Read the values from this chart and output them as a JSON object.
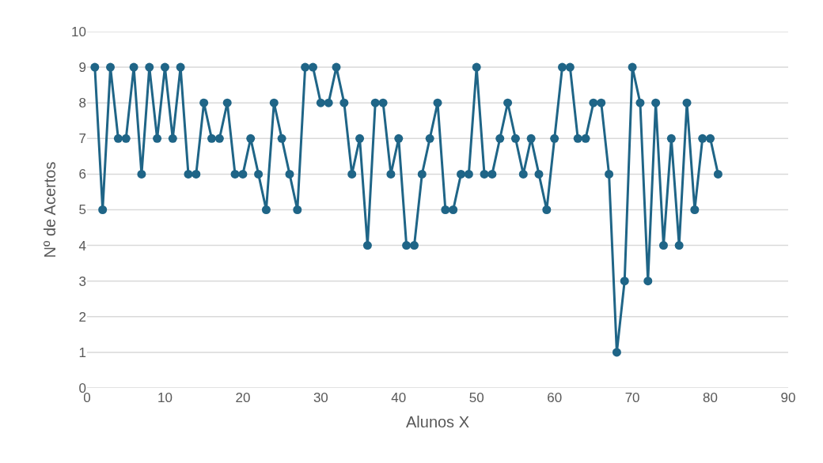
{
  "chart_data": {
    "type": "line",
    "xlabel": "Alunos X",
    "ylabel": "Nº de Acertos",
    "x": [
      1,
      2,
      3,
      4,
      5,
      6,
      7,
      8,
      9,
      10,
      11,
      12,
      13,
      14,
      15,
      16,
      17,
      18,
      19,
      20,
      21,
      22,
      23,
      24,
      25,
      26,
      27,
      28,
      29,
      30,
      31,
      32,
      33,
      34,
      35,
      36,
      37,
      38,
      39,
      40,
      41,
      42,
      43,
      44,
      45,
      46,
      47,
      48,
      49,
      50,
      51,
      52,
      53,
      54,
      55,
      56,
      57,
      58,
      59,
      60,
      61,
      62,
      63,
      64,
      65,
      66,
      67,
      68,
      69,
      70,
      71,
      72,
      73,
      74,
      75,
      76,
      77,
      78,
      79,
      80,
      81
    ],
    "series": [
      {
        "color": "#1f6587",
        "values": [
          9,
          5,
          9,
          7,
          7,
          9,
          6,
          9,
          7,
          9,
          7,
          9,
          6,
          6,
          8,
          7,
          7,
          8,
          6,
          6,
          7,
          6,
          5,
          8,
          7,
          6,
          5,
          9,
          9,
          8,
          8,
          9,
          8,
          6,
          7,
          4,
          8,
          8,
          6,
          7,
          4,
          4,
          6,
          7,
          8,
          5,
          5,
          6,
          6,
          9,
          6,
          6,
          7,
          8,
          7,
          6,
          7,
          6,
          5,
          7,
          9,
          9,
          7,
          7,
          8,
          8,
          6,
          1,
          3,
          9,
          8,
          3,
          8,
          4,
          7,
          4,
          8,
          5,
          7,
          7,
          6
        ]
      }
    ],
    "xlim": [
      0,
      90
    ],
    "xticks": [
      0,
      10,
      20,
      30,
      40,
      50,
      60,
      70,
      80,
      90
    ],
    "ylim": [
      0,
      10
    ],
    "yticks": [
      0,
      1,
      2,
      3,
      4,
      5,
      6,
      7,
      8,
      9,
      10
    ],
    "grid": "y",
    "marker": "circle",
    "line_style": "solid"
  }
}
